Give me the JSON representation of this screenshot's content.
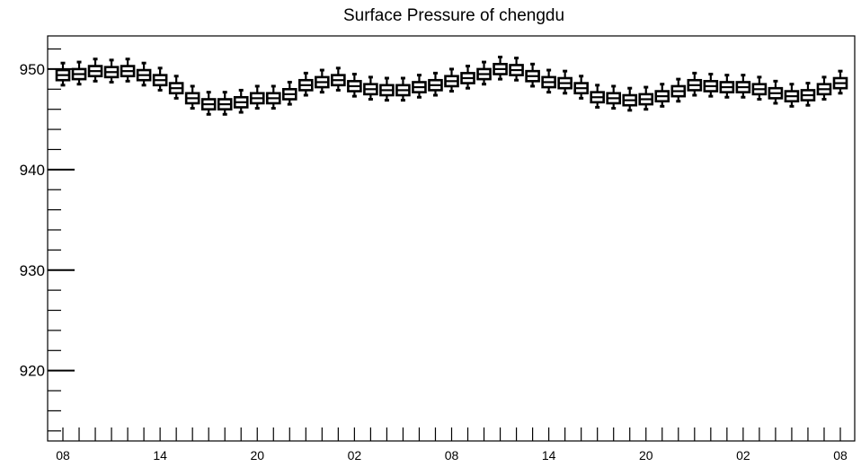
{
  "chart_data": {
    "type": "box",
    "title": "Surface Pressure of chengdu",
    "xlabel": "",
    "ylabel": "",
    "ylim": [
      913,
      953.3
    ],
    "yticks": [
      920,
      930,
      940,
      950
    ],
    "ytick_labels": [
      "920",
      "930",
      "940",
      "950"
    ],
    "n_boxes": 49,
    "xtick_labels": [
      "08",
      "14",
      "20",
      "02",
      "08",
      "14",
      "20",
      "02",
      "08"
    ],
    "xtick_label_indices": [
      0,
      6,
      12,
      18,
      24,
      30,
      36,
      42,
      48
    ],
    "median": [
      949.4,
      949.5,
      949.8,
      949.7,
      949.8,
      949.4,
      948.9,
      948.1,
      947.1,
      946.5,
      946.5,
      946.7,
      947.1,
      947.1,
      947.5,
      948.4,
      948.7,
      948.9,
      948.3,
      948.0,
      947.9,
      947.9,
      948.2,
      948.4,
      948.8,
      949.1,
      949.5,
      950.0,
      949.9,
      949.3,
      948.7,
      948.6,
      948.1,
      947.2,
      947.1,
      946.9,
      947.0,
      947.3,
      947.8,
      948.4,
      948.3,
      948.2,
      948.2,
      948.0,
      947.6,
      947.3,
      947.4,
      948.0,
      948.6
    ],
    "q1": [
      948.9,
      949.0,
      949.3,
      949.2,
      949.3,
      948.9,
      948.4,
      947.6,
      946.6,
      946.0,
      946.0,
      946.2,
      946.6,
      946.6,
      947.0,
      947.9,
      948.2,
      948.4,
      947.8,
      947.5,
      947.4,
      947.4,
      947.7,
      947.9,
      948.3,
      948.6,
      949.0,
      949.5,
      949.4,
      948.8,
      948.2,
      948.1,
      947.6,
      946.7,
      946.6,
      946.4,
      946.5,
      946.8,
      947.3,
      947.9,
      947.8,
      947.7,
      947.7,
      947.5,
      947.1,
      946.8,
      946.9,
      947.5,
      948.1
    ],
    "q3": [
      949.9,
      950.0,
      950.3,
      950.2,
      950.3,
      949.9,
      949.4,
      948.6,
      947.6,
      947.0,
      947.0,
      947.2,
      947.6,
      947.6,
      948.0,
      948.9,
      949.2,
      949.4,
      948.8,
      948.5,
      948.4,
      948.4,
      948.7,
      948.9,
      949.3,
      949.6,
      950.0,
      950.5,
      950.4,
      949.8,
      949.2,
      949.1,
      948.6,
      947.7,
      947.6,
      947.4,
      947.5,
      947.8,
      948.3,
      948.9,
      948.8,
      948.7,
      948.7,
      948.5,
      948.1,
      947.8,
      947.9,
      948.5,
      949.1
    ],
    "whisker_low": [
      948.4,
      948.5,
      948.8,
      948.7,
      948.8,
      948.4,
      947.9,
      947.1,
      946.1,
      945.5,
      945.5,
      945.7,
      946.1,
      946.1,
      946.5,
      947.4,
      947.7,
      947.9,
      947.3,
      947.0,
      946.9,
      946.9,
      947.2,
      947.4,
      947.8,
      948.1,
      948.5,
      949.0,
      948.9,
      948.3,
      947.7,
      947.6,
      947.1,
      946.2,
      946.1,
      945.9,
      946.0,
      946.3,
      946.8,
      947.4,
      947.3,
      947.2,
      947.2,
      947.0,
      946.6,
      946.3,
      946.4,
      947.0,
      947.6
    ],
    "whisker_high": [
      950.6,
      950.7,
      951.0,
      950.9,
      951.0,
      950.6,
      950.1,
      949.3,
      948.3,
      947.7,
      947.7,
      947.9,
      948.3,
      948.3,
      948.7,
      949.6,
      949.9,
      950.1,
      949.5,
      949.2,
      949.1,
      949.1,
      949.4,
      949.6,
      950.0,
      950.3,
      950.7,
      951.2,
      951.1,
      950.5,
      949.9,
      949.8,
      949.3,
      948.4,
      948.3,
      948.1,
      948.2,
      948.5,
      949.0,
      949.6,
      949.5,
      949.4,
      949.4,
      949.2,
      948.8,
      948.5,
      948.6,
      949.2,
      949.8
    ],
    "grid": false,
    "legend": "none"
  }
}
